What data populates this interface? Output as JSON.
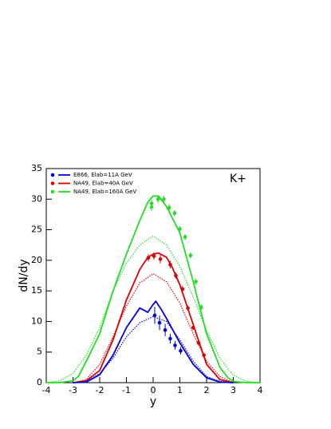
{
  "chart_data": {
    "type": "line",
    "x_label": "y",
    "y_label": "dN/dy",
    "annotation": "K+",
    "xlim": [
      -4,
      4
    ],
    "ylim": [
      0,
      35
    ],
    "xticks": [
      -4,
      -3,
      -2,
      -1,
      0,
      1,
      2,
      3,
      4
    ],
    "yticks": [
      0,
      5,
      10,
      15,
      20,
      25,
      30,
      35
    ],
    "series": [
      {
        "type": "scatter",
        "name": "E866, Elab=11A GeV",
        "color": "#0000dd",
        "x": [
          0.06,
          0.24,
          0.45,
          0.64,
          0.82,
          1.03
        ],
        "values": [
          11.0,
          9.8,
          8.6,
          7.2,
          6.1,
          5.2
        ],
        "errors": [
          1.4,
          1.2,
          1.0,
          0.8,
          0.7,
          0.6
        ]
      },
      {
        "type": "scatter",
        "name": "NA49, Elab=40A GeV",
        "color": "#dd0000",
        "x": [
          -0.18,
          0.03,
          0.27,
          0.64,
          0.85,
          1.1,
          1.3,
          1.5,
          1.7,
          1.9
        ],
        "values": [
          20.4,
          20.7,
          20.2,
          19.3,
          17.5,
          15.3,
          12.2,
          9.0,
          6.5,
          4.5
        ],
        "errors": [
          0.6,
          0.6,
          0.7,
          0.6,
          0.5,
          0.5,
          0.4,
          0.4,
          0.3,
          0.3
        ]
      },
      {
        "type": "scatter",
        "name": "NA49, Elab=160A GeV",
        "color": "#22dd22",
        "x": [
          -0.06,
          -0.06,
          0.18,
          0.4,
          0.6,
          0.8,
          1.0,
          1.2,
          1.4,
          1.6,
          1.8
        ],
        "values": [
          28.7,
          29.3,
          30.0,
          30.0,
          28.6,
          27.7,
          25.1,
          23.8,
          20.8,
          16.5,
          12.3
        ],
        "errors": [
          0.6,
          0.6,
          0.6,
          0.6,
          0.6,
          0.5,
          0.5,
          0.5,
          0.5,
          0.5,
          0.5
        ]
      },
      {
        "type": "line",
        "style": "solid",
        "color": "#22dd22",
        "x": [
          -4,
          -3.5,
          -3,
          -2.8,
          -2.5,
          -2,
          -1.5,
          -1,
          -0.5,
          -0.2,
          0,
          0.2,
          0.5,
          1,
          1.5,
          2,
          2.5,
          2.8,
          3,
          3.5,
          4
        ],
        "values": [
          0,
          0,
          0.3,
          1,
          3.5,
          8,
          15,
          21,
          26.5,
          29.5,
          30.5,
          30.5,
          28.8,
          24.5,
          16.5,
          8,
          2.5,
          0.8,
          0.2,
          0,
          0
        ]
      },
      {
        "type": "line",
        "style": "dotted",
        "color": "#22dd22",
        "x": [
          -4,
          -3.5,
          -3,
          -2.5,
          -2,
          -1.5,
          -1,
          -0.5,
          0,
          0.5,
          1,
          1.5,
          2,
          2.5,
          3,
          3.5,
          4
        ],
        "values": [
          0,
          0.3,
          1.5,
          4.5,
          9,
          15,
          19.5,
          22.5,
          24,
          22.5,
          19,
          14,
          8.5,
          4,
          1.2,
          0.2,
          0
        ]
      },
      {
        "type": "line",
        "style": "solid",
        "color": "#dd0000",
        "x": [
          -3,
          -2.5,
          -2,
          -1.5,
          -1,
          -0.5,
          -0.2,
          0,
          0.2,
          0.5,
          0.7,
          1,
          1.5,
          2,
          2.5,
          3
        ],
        "values": [
          0,
          0.3,
          2,
          7,
          13.5,
          18.5,
          20.5,
          21,
          21.2,
          20.5,
          19,
          16,
          9.5,
          3,
          0.5,
          0
        ]
      },
      {
        "type": "line",
        "style": "dotted",
        "color": "#dd0000",
        "x": [
          -3,
          -2.5,
          -2,
          -1.5,
          -1,
          -0.5,
          0,
          0.5,
          1,
          1.5,
          2,
          2.5,
          3
        ],
        "values": [
          0,
          0.5,
          3,
          7.5,
          12.5,
          16.3,
          17.8,
          16.5,
          13,
          8,
          3.5,
          1,
          0
        ]
      },
      {
        "type": "line",
        "style": "solid",
        "color": "#0000dd",
        "x": [
          -3,
          -2.5,
          -2,
          -1.5,
          -1,
          -0.5,
          -0.2,
          0,
          0.1,
          0.3,
          0.5,
          1,
          1.5,
          2,
          2.5,
          3
        ],
        "values": [
          0,
          0.1,
          1.3,
          4.5,
          9,
          12.2,
          11.5,
          12.8,
          13.3,
          12,
          10.5,
          6.5,
          3,
          0.8,
          0.1,
          0
        ]
      },
      {
        "type": "line",
        "style": "dotted",
        "color": "#0000dd",
        "x": [
          -3,
          -2.5,
          -2,
          -1.5,
          -1,
          -0.5,
          0,
          0.5,
          1,
          1.5,
          2,
          2.5,
          3
        ],
        "values": [
          0,
          0.2,
          1.5,
          4,
          7.5,
          9.8,
          10.8,
          10,
          7,
          3.5,
          1,
          0.2,
          0
        ]
      }
    ]
  }
}
